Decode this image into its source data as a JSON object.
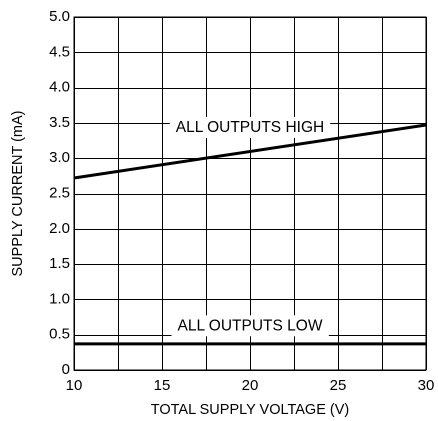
{
  "chart_data": {
    "type": "line",
    "title": "",
    "xlabel": "TOTAL SUPPLY VOLTAGE (V)",
    "ylabel": "SUPPLY CURRENT (mA)",
    "xlim": [
      10,
      30
    ],
    "ylim": [
      0,
      5.0
    ],
    "x_ticks": [
      10,
      15,
      20,
      25,
      30
    ],
    "x_tick_labels": [
      "10",
      "15",
      "20",
      "25",
      "30"
    ],
    "x_grid": [
      10,
      12.5,
      15,
      17.5,
      20,
      22.5,
      25,
      27.5,
      30
    ],
    "y_ticks": [
      0,
      0.5,
      1.0,
      1.5,
      2.0,
      2.5,
      3.0,
      3.5,
      4.0,
      4.5,
      5.0
    ],
    "y_tick_labels": [
      "0",
      "0.5",
      "1.0",
      "1.5",
      "2.0",
      "2.5",
      "3.0",
      "3.5",
      "4.0",
      "4.5",
      "5.0"
    ],
    "grid": true,
    "series": [
      {
        "x": [
          10,
          30
        ],
        "y": [
          2.72,
          3.47
        ],
        "color": "#000000"
      },
      {
        "x": [
          10,
          30
        ],
        "y": [
          0.37,
          0.37
        ],
        "color": "#000000"
      }
    ],
    "annotations": [
      {
        "text": "ALL OUTPUTS HIGH",
        "x": 20,
        "y": 3.43
      },
      {
        "text": "ALL OUTPUTS LOW",
        "x": 20,
        "y": 0.62
      }
    ]
  }
}
